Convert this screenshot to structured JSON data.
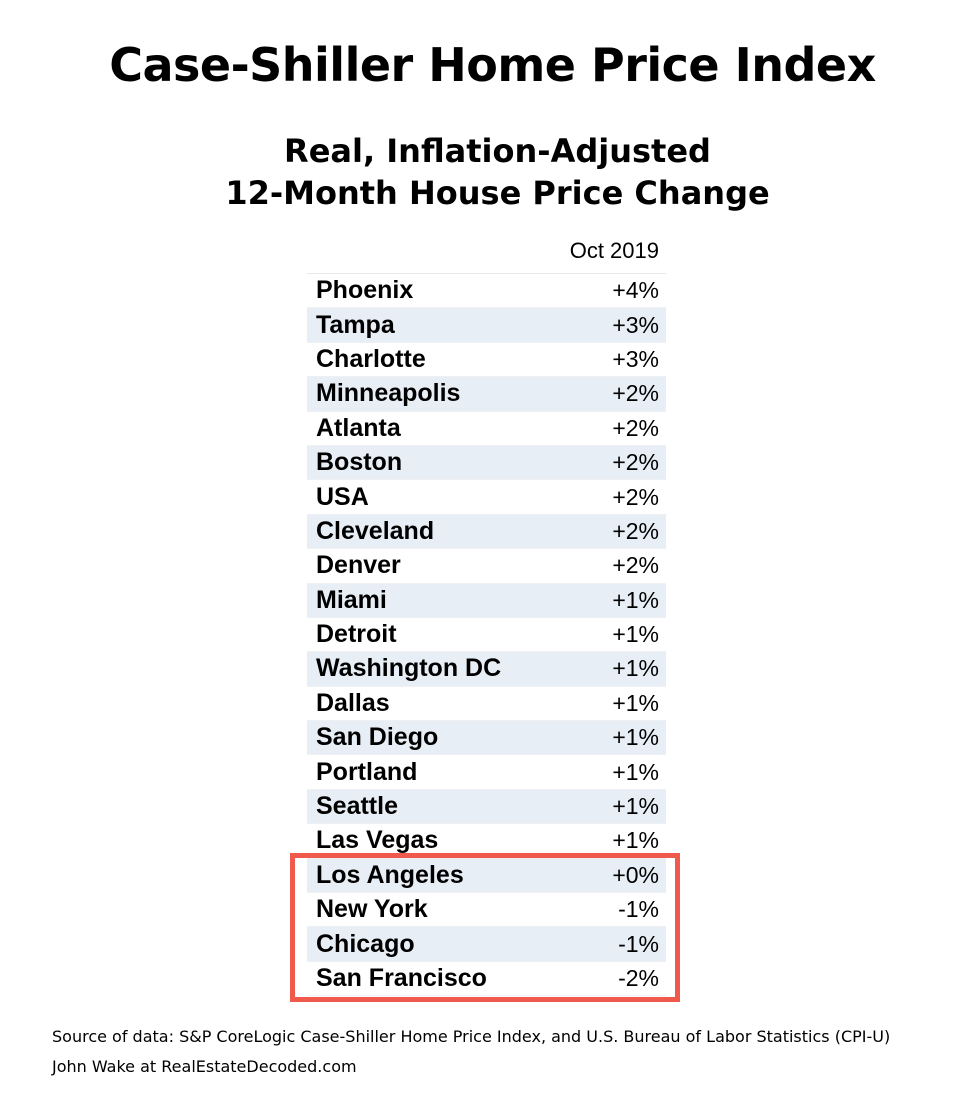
{
  "chart_data": {
    "type": "table",
    "title": "Case-Shiller Home Price Index",
    "subtitle_lines": [
      "Real, Inflation-Adjusted",
      "12-Month House Price Change"
    ],
    "column_header": "Oct 2019",
    "rows": [
      {
        "city": "Phoenix",
        "value": "+4%"
      },
      {
        "city": "Tampa",
        "value": "+3%"
      },
      {
        "city": "Charlotte",
        "value": "+3%"
      },
      {
        "city": "Minneapolis",
        "value": "+2%"
      },
      {
        "city": "Atlanta",
        "value": "+2%"
      },
      {
        "city": "Boston",
        "value": "+2%"
      },
      {
        "city": "USA",
        "value": "+2%"
      },
      {
        "city": "Cleveland",
        "value": "+2%"
      },
      {
        "city": "Denver",
        "value": "+2%"
      },
      {
        "city": "Miami",
        "value": "+1%"
      },
      {
        "city": "Detroit",
        "value": "+1%"
      },
      {
        "city": "Washington DC",
        "value": "+1%"
      },
      {
        "city": "Dallas",
        "value": "+1%"
      },
      {
        "city": "San Diego",
        "value": "+1%"
      },
      {
        "city": "Portland",
        "value": "+1%"
      },
      {
        "city": "Seattle",
        "value": "+1%"
      },
      {
        "city": "Las Vegas",
        "value": "+1%"
      },
      {
        "city": "Los Angeles",
        "value": "+0%"
      },
      {
        "city": "New York",
        "value": "-1%"
      },
      {
        "city": "Chicago",
        "value": "-1%"
      },
      {
        "city": "San Francisco",
        "value": "-2%"
      }
    ],
    "highlighted_rows": [
      "Los Angeles",
      "New York",
      "Chicago",
      "San Francisco"
    ],
    "colors": {
      "highlight_border": "#f05a4d",
      "alt_row": "#e8eef5"
    }
  },
  "footer": {
    "source": "Source of data: S&P CoreLogic Case-Shiller Home Price Index, and U.S. Bureau of Labor Statistics (CPI-U)",
    "author": "John Wake at RealEstateDecoded.com"
  }
}
